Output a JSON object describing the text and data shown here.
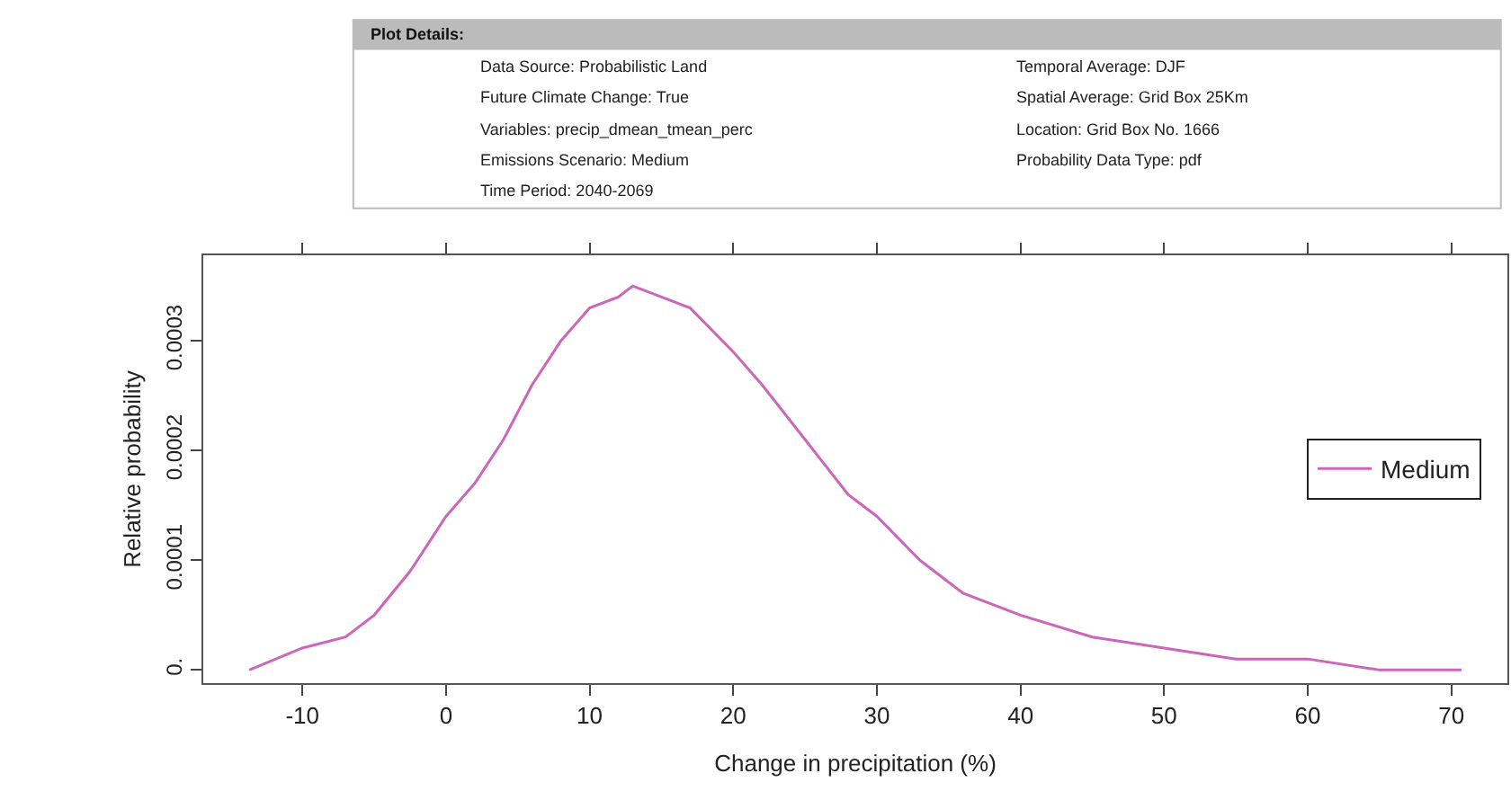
{
  "chart_data": {
    "type": "line",
    "xlabel": "Change in precipitation (%)",
    "ylabel": "Relative probability",
    "annotations": [
      "Plot Details:",
      "Data Source: Probabilistic Land",
      "Future Climate Change: True",
      "Variables: precip_dmean_tmean_perc",
      "Emissions Scenario: Medium",
      "Time Period: 2040-2069",
      "Temporal Average: DJF",
      "Spatial Average: Grid Box 25Km",
      "Location: Grid Box No. 1666",
      "Probability Data Type: pdf"
    ],
    "x": [
      -13.7,
      -10,
      -7,
      -5,
      -2.5,
      0,
      2,
      4,
      6,
      8,
      10,
      12,
      13,
      15,
      17,
      20,
      22,
      25,
      28,
      30,
      33,
      36,
      40,
      45,
      50,
      55,
      60,
      65,
      70.7
    ],
    "series": [
      {
        "name": "Medium",
        "color": "#cc66bb",
        "values": [
          0.0,
          2e-05,
          3e-05,
          5e-05,
          9e-05,
          0.00014,
          0.00017,
          0.00021,
          0.00026,
          0.0003,
          0.00033,
          0.00034,
          0.00035,
          0.00034,
          0.00033,
          0.00029,
          0.00026,
          0.00021,
          0.00016,
          0.00014,
          0.0001,
          7e-05,
          5e-05,
          3e-05,
          2e-05,
          1e-05,
          1e-05,
          0.0,
          0.0
        ]
      }
    ],
    "xlim": [
      -16.9,
      73.9
    ],
    "ylim": [
      -1.2e-05,
      0.000378
    ],
    "xticks": [
      -10,
      0,
      10,
      20,
      30,
      40,
      50,
      60,
      70
    ],
    "yticks": [
      {
        "value": 0,
        "label": "0."
      },
      0.0001,
      0.0002,
      0.0003
    ],
    "legend": "right",
    "marker": "none",
    "line_style": "solid"
  }
}
